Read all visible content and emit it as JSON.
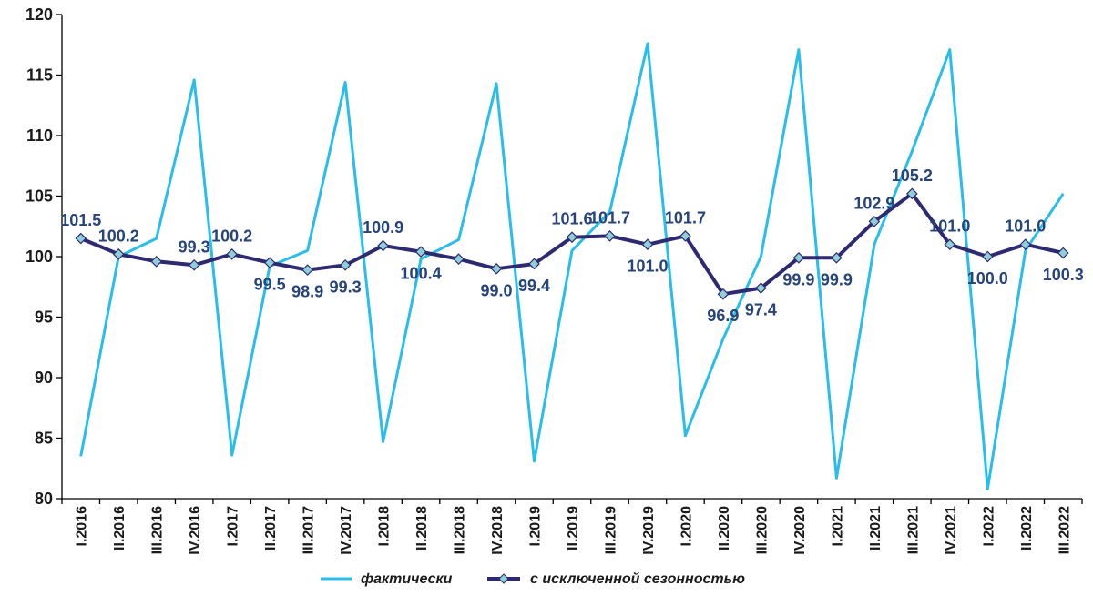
{
  "chart_data": {
    "type": "line",
    "title": "",
    "xlabel": "",
    "ylabel": "",
    "ylim": [
      80,
      120
    ],
    "yticks": [
      "80",
      "85",
      "90",
      "95",
      "100",
      "105",
      "110",
      "115",
      "120"
    ],
    "categories": [
      "I.2016",
      "II.2016",
      "III.2016",
      "IV.2016",
      "I.2017",
      "II.2017",
      "III.2017",
      "IV.2017",
      "I.2018",
      "II.2018",
      "III.2018",
      "IV.2018",
      "I.2019",
      "II.2019",
      "III.2019",
      "IV.2019",
      "I.2020",
      "II.2020",
      "III.2020",
      "IV.2020",
      "I.2021",
      "II.2021",
      "III.2021",
      "IV.2021",
      "I.2022",
      "II.2022",
      "III.2022"
    ],
    "series": [
      {
        "name": "фактически",
        "color": "#29bde9",
        "marker": "none",
        "values": [
          83.5,
          100.0,
          101.5,
          114.6,
          83.6,
          99.2,
          100.5,
          114.4,
          84.7,
          99.8,
          101.4,
          114.3,
          83.1,
          100.5,
          103.7,
          117.6,
          85.2,
          93.2,
          100.0,
          117.1,
          81.7,
          101.0,
          108.7,
          117.1,
          80.8,
          100.5,
          105.2
        ],
        "labels": []
      },
      {
        "name": "с исключенной сезонностью",
        "color": "#2e2a72",
        "marker": "diamond",
        "values": [
          101.5,
          100.2,
          99.6,
          99.3,
          100.2,
          99.5,
          98.9,
          99.3,
          100.9,
          100.4,
          99.8,
          99.0,
          99.4,
          101.6,
          101.7,
          101.0,
          101.7,
          96.9,
          97.4,
          99.9,
          99.9,
          102.9,
          105.2,
          101.0,
          100.0,
          101.0,
          100.3
        ],
        "labels": [
          "101.5",
          "100.2",
          "",
          "99.3",
          "100.2",
          "99.5",
          "98.9",
          "99.3",
          "100.9",
          "100.4",
          "",
          "99.0",
          "99.4",
          "101.6",
          "101.7",
          "101.0",
          "101.7",
          "96.9",
          "97.4",
          "99.9",
          "99.9",
          "102.9",
          "105.2",
          "101.0",
          "100.0",
          "101.0",
          "100.3"
        ]
      }
    ],
    "legend": [
      "фактически",
      "с исключенной сезонностью"
    ],
    "legend_position": "bottom",
    "grid": false
  }
}
